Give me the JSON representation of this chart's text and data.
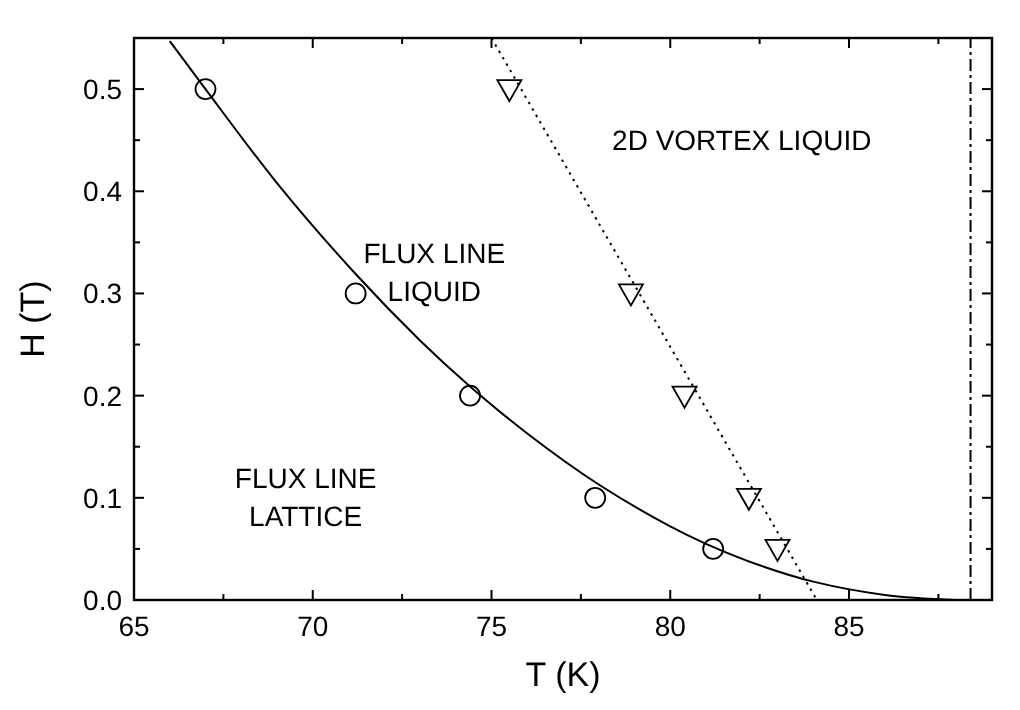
{
  "chart_data": {
    "type": "scatter",
    "xlabel": "T (K)",
    "ylabel": "H (T)",
    "xlim": [
      65,
      89
    ],
    "ylim": [
      0,
      0.55
    ],
    "xticks": [
      65,
      {
        "value": 67.5,
        "label": null
      },
      70,
      {
        "value": 72.5,
        "label": null
      },
      75,
      {
        "value": 77.5,
        "label": null
      },
      80,
      {
        "value": 82.5,
        "label": null
      },
      85,
      {
        "value": 87.5,
        "label": null
      }
    ],
    "yticks": [
      {
        "value": 0,
        "label": "0.0"
      },
      {
        "value": 0.05,
        "label": null
      },
      0.1,
      {
        "value": 0.15,
        "label": null
      },
      0.2,
      {
        "value": 0.25,
        "label": null
      },
      0.3,
      {
        "value": 0.35,
        "label": null
      },
      0.4,
      {
        "value": 0.45,
        "label": null
      },
      0.5
    ],
    "grid": false,
    "series": [
      {
        "type": "line",
        "color": "#000000",
        "line_style": "solid",
        "marker": "none",
        "x": [
          66,
          67,
          69,
          71.2,
          73,
          74.4,
          76,
          78,
          80,
          81,
          82.5,
          84,
          86,
          88
        ],
        "values": [
          0.547,
          0.5,
          0.408,
          0.319,
          0.254,
          0.209,
          0.163,
          0.113,
          0.072,
          0.055,
          0.034,
          0.018,
          0.005,
          0
        ]
      },
      {
        "type": "line",
        "color": "#000000",
        "line_style": "dotted",
        "marker": "none",
        "x": [
          75,
          84.1
        ],
        "values": [
          0.55,
          0
        ]
      },
      {
        "color": "#000000",
        "marker": "circle",
        "x": [
          67,
          71.2,
          74.4,
          77.9,
          81.2
        ],
        "values": [
          0.5,
          0.3,
          0.2,
          0.1,
          0.05
        ]
      },
      {
        "color": "#000000",
        "marker": "triangle",
        "x": [
          75.5,
          78.9,
          80.4,
          82.2,
          83
        ],
        "values": [
          0.5,
          0.3,
          0.2,
          0.1,
          0.05
        ]
      }
    ],
    "ref_lines": [
      {
        "axis": "x",
        "value": 88.4,
        "label": null,
        "color": "#000000",
        "line_style": "dashed"
      }
    ],
    "annotations": [
      "2D VORTEX LIQUID",
      "FLUX LINE\nLIQUID",
      "FLUX LINE\nLATTICE"
    ]
  }
}
